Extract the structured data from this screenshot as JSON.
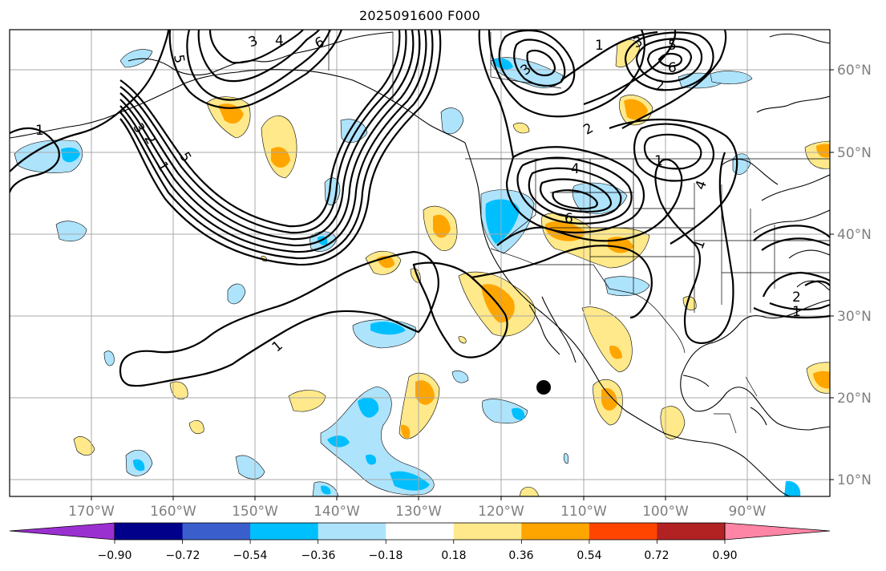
{
  "title": "2025091600 F000",
  "longitude_labels": [
    "170°W",
    "160°W",
    "150°W",
    "140°W",
    "130°W",
    "120°W",
    "110°W",
    "100°W",
    "90°W"
  ],
  "latitude_labels": [
    "60°N",
    "50°N",
    "40°N",
    "30°N",
    "20°N",
    "10°N"
  ],
  "contour_labels": [
    "3",
    "4",
    "6",
    "5",
    "1",
    "3",
    "2",
    "5",
    "6",
    "4",
    "1",
    "2",
    "4",
    "1",
    "1",
    "6",
    "3",
    "5",
    "3",
    "2",
    "1",
    "1",
    "2",
    "1"
  ],
  "colorbar": {
    "tick_labels": [
      "−0.90",
      "−0.72",
      "−0.54",
      "−0.36",
      "−0.18",
      "0.18",
      "0.36",
      "0.54",
      "0.72",
      "0.90"
    ],
    "colors": [
      "#9b30d0",
      "#00008b",
      "#3a5fcd",
      "#00bfff",
      "#aee3fc",
      "#ffffff",
      "#ffe98a",
      "#ffa500",
      "#ff4500",
      "#b22222",
      "#ff85a6"
    ]
  },
  "colors": {
    "land_edge": "#000000",
    "grid": "#a8a8a8",
    "marker": "#000000"
  }
}
